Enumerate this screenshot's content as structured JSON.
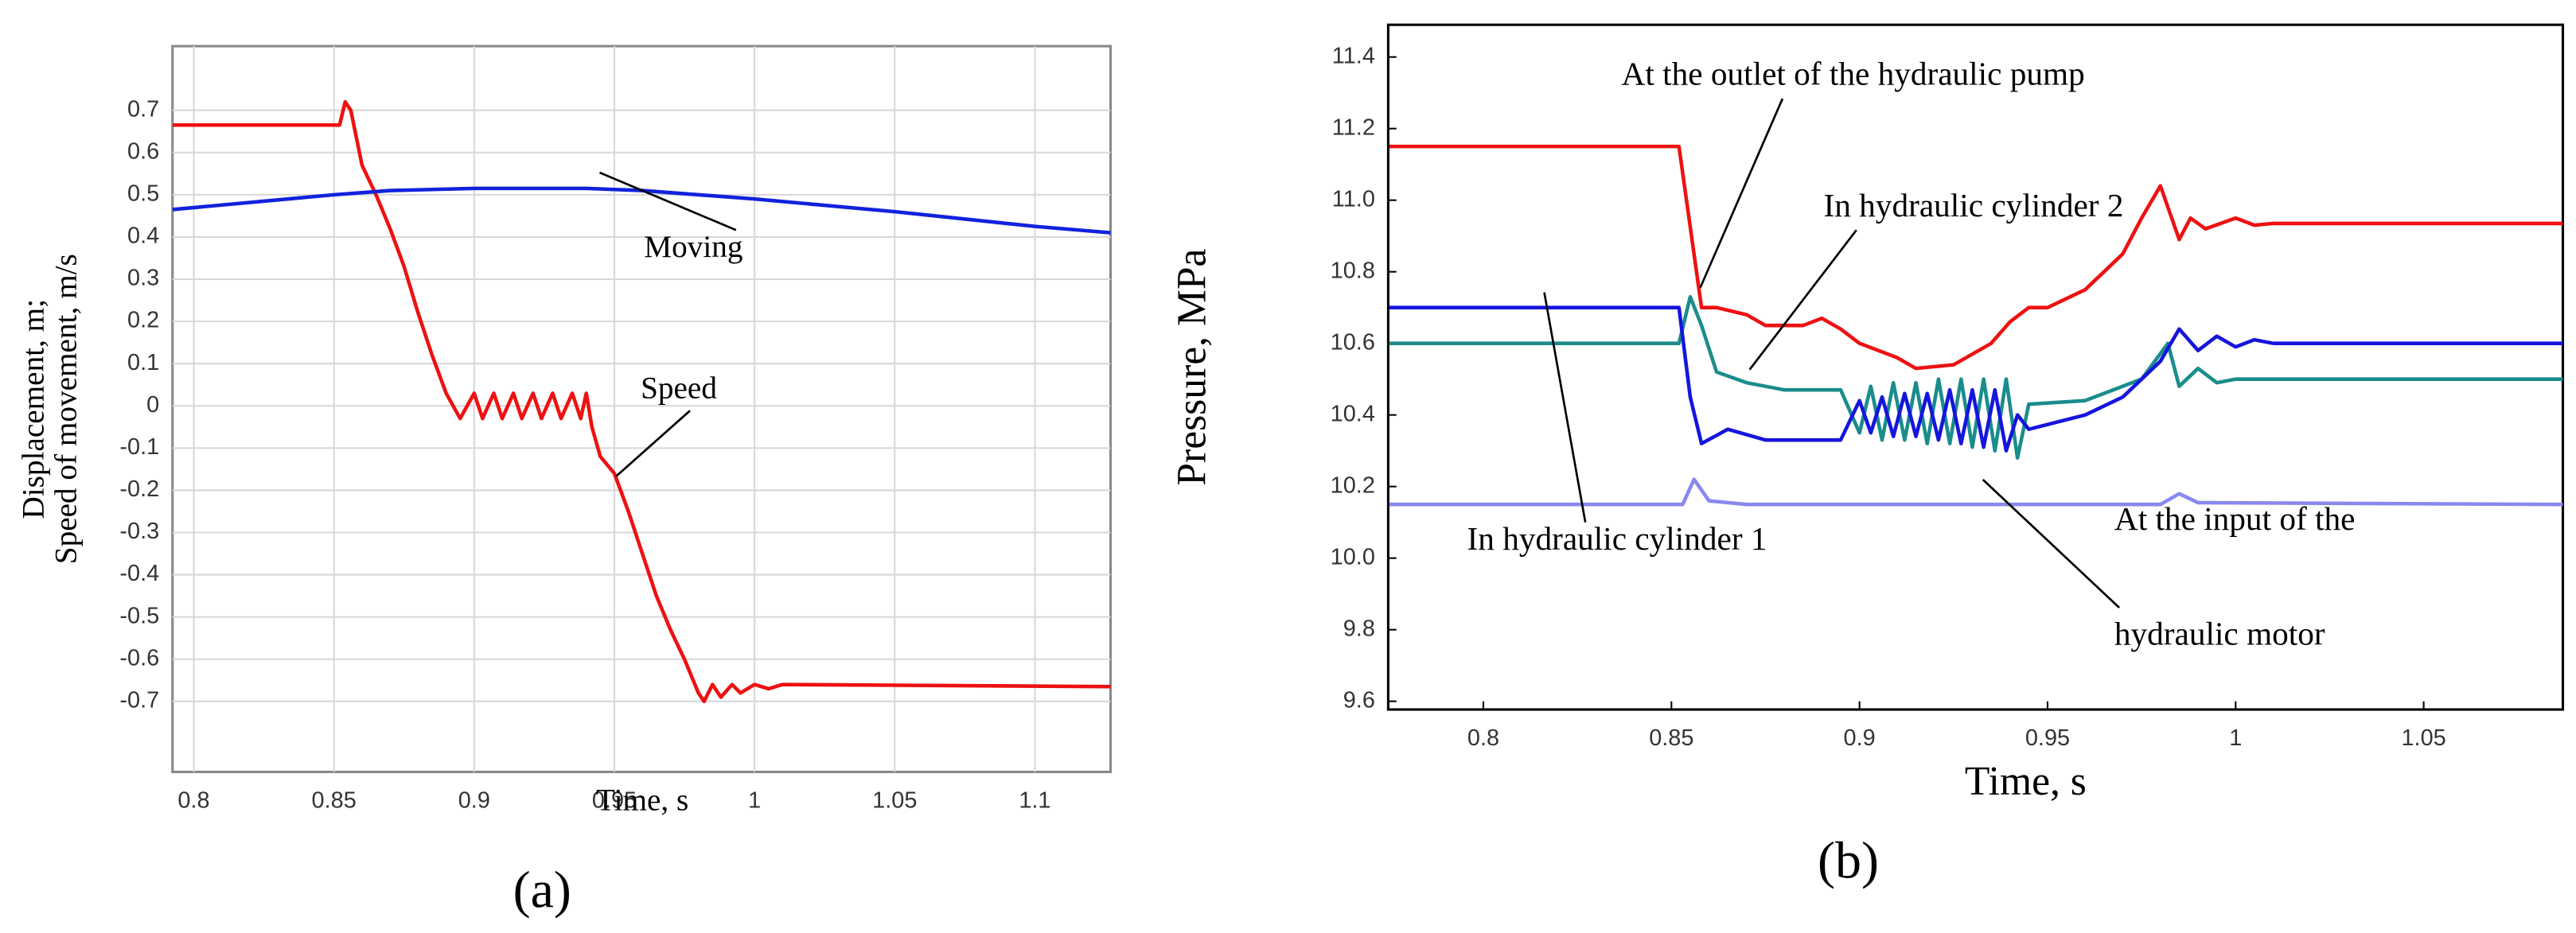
{
  "chart_data": [
    {
      "type": "line",
      "label": "(a)",
      "x_label": "Time, s",
      "y_label": [
        "Displacement, m;",
        "Speed of movement, m/s"
      ],
      "xlim": [
        0.7924,
        1.127
      ],
      "ylim": [
        -0.867,
        0.852
      ],
      "xticks": [
        0.8,
        0.85,
        0.9,
        0.95,
        1,
        1.05,
        1.1
      ],
      "yticks": [
        0.7,
        0.6,
        0.5,
        0.4,
        0.3,
        0.2,
        0.1,
        0,
        -0.1,
        -0.2,
        -0.3,
        -0.4,
        -0.5,
        -0.6,
        -0.7
      ],
      "grid": true,
      "annotations": [
        "Moving",
        "Speed"
      ],
      "series": [
        {
          "color": "#ee1111",
          "x": [
            0.7924,
            0.852,
            0.854,
            0.856,
            0.86,
            0.865,
            0.87,
            0.875,
            0.88,
            0.885,
            0.89,
            0.895,
            0.9,
            0.903,
            0.907,
            0.91,
            0.914,
            0.917,
            0.921,
            0.924,
            0.928,
            0.931,
            0.935,
            0.938,
            0.94,
            0.942,
            0.945,
            0.95,
            0.955,
            0.96,
            0.965,
            0.97,
            0.975,
            0.98,
            0.982,
            0.985,
            0.988,
            0.992,
            0.995,
            1.0,
            1.005,
            1.01,
            1.127
          ],
          "values": [
            0.665,
            0.665,
            0.72,
            0.7,
            0.57,
            0.5,
            0.42,
            0.33,
            0.22,
            0.12,
            0.03,
            -0.03,
            0.03,
            -0.03,
            0.03,
            -0.03,
            0.03,
            -0.03,
            0.03,
            -0.03,
            0.03,
            -0.03,
            0.03,
            -0.03,
            0.03,
            -0.05,
            -0.12,
            -0.16,
            -0.25,
            -0.35,
            -0.45,
            -0.53,
            -0.6,
            -0.68,
            -0.7,
            -0.66,
            -0.69,
            -0.66,
            -0.68,
            -0.66,
            -0.67,
            -0.66,
            -0.665
          ]
        },
        {
          "color": "#1122dd",
          "x": [
            0.7924,
            0.85,
            0.87,
            0.9,
            0.94,
            0.96,
            1.0,
            1.05,
            1.1,
            1.127
          ],
          "values": [
            0.465,
            0.5,
            0.51,
            0.515,
            0.515,
            0.51,
            0.49,
            0.46,
            0.425,
            0.41
          ]
        }
      ]
    },
    {
      "type": "line",
      "label": "(b)",
      "x_label": "Time, s",
      "y_label": [
        "Pressure, MPa"
      ],
      "xlim": [
        0.7747,
        1.087
      ],
      "ylim": [
        9.577,
        11.49
      ],
      "xticks": [
        0.8,
        0.85,
        0.9,
        0.95,
        1,
        1.05
      ],
      "yticks": [
        11.4,
        11.2,
        {
          "value": 11,
          "label": "11.0"
        },
        10.8,
        10.6,
        10.4,
        10.2,
        {
          "value": 10,
          "label": "10.0"
        },
        9.8,
        9.6
      ],
      "grid": false,
      "annotations": [
        "At the outlet of the hydraulic pump",
        "In hydraulic cylinder 2",
        "In hydraulic cylinder 1",
        "At the input of the",
        "hydraulic motor"
      ],
      "series": [
        {
          "color": "#ee1111",
          "x": [
            0.775,
            0.852,
            0.856,
            0.858,
            0.862,
            0.87,
            0.875,
            0.885,
            0.89,
            0.895,
            0.9,
            0.91,
            0.915,
            0.925,
            0.935,
            0.94,
            0.945,
            0.95,
            0.96,
            0.97,
            0.975,
            0.98,
            0.983,
            0.985,
            0.988,
            0.992,
            1.0,
            1.005,
            1.01,
            1.087
          ],
          "values": [
            11.15,
            11.15,
            10.85,
            10.7,
            10.7,
            10.68,
            10.65,
            10.65,
            10.67,
            10.64,
            10.6,
            10.56,
            10.53,
            10.54,
            10.6,
            10.66,
            10.7,
            10.7,
            10.75,
            10.85,
            10.95,
            11.04,
            10.95,
            10.89,
            10.95,
            10.92,
            10.95,
            10.93,
            10.935,
            10.935
          ]
        },
        {
          "color": "#1a8c8c",
          "x": [
            0.775,
            0.852,
            0.855,
            0.858,
            0.862,
            0.87,
            0.88,
            0.895,
            0.9,
            0.903,
            0.906,
            0.909,
            0.912,
            0.915,
            0.918,
            0.921,
            0.924,
            0.927,
            0.93,
            0.933,
            0.936,
            0.939,
            0.942,
            0.945,
            0.96,
            0.975,
            0.982,
            0.985,
            0.99,
            0.995,
            1.0,
            1.087
          ],
          "values": [
            10.6,
            10.6,
            10.73,
            10.65,
            10.52,
            10.49,
            10.47,
            10.47,
            10.35,
            10.48,
            10.33,
            10.49,
            10.33,
            10.49,
            10.32,
            10.5,
            10.32,
            10.5,
            10.31,
            10.5,
            10.3,
            10.5,
            10.28,
            10.43,
            10.44,
            10.5,
            10.6,
            10.48,
            10.53,
            10.49,
            10.5,
            10.5
          ]
        },
        {
          "color": "#1515dd",
          "x": [
            0.775,
            0.852,
            0.855,
            0.858,
            0.865,
            0.875,
            0.895,
            0.9,
            0.903,
            0.906,
            0.909,
            0.912,
            0.915,
            0.918,
            0.921,
            0.924,
            0.927,
            0.93,
            0.933,
            0.936,
            0.939,
            0.942,
            0.945,
            0.96,
            0.97,
            0.98,
            0.985,
            0.99,
            0.995,
            1.0,
            1.005,
            1.01,
            1.087
          ],
          "values": [
            10.7,
            10.7,
            10.45,
            10.32,
            10.36,
            10.33,
            10.33,
            10.44,
            10.35,
            10.45,
            10.34,
            10.46,
            10.34,
            10.46,
            10.33,
            10.47,
            10.32,
            10.47,
            10.31,
            10.47,
            10.3,
            10.4,
            10.36,
            10.4,
            10.45,
            10.55,
            10.64,
            10.58,
            10.62,
            10.59,
            10.61,
            10.6,
            10.6
          ]
        },
        {
          "color": "#8888ee",
          "x": [
            0.775,
            0.853,
            0.856,
            0.86,
            0.87,
            0.98,
            0.985,
            0.99,
            1.087
          ],
          "values": [
            10.15,
            10.15,
            10.22,
            10.16,
            10.15,
            10.15,
            10.18,
            10.155,
            10.15
          ]
        }
      ]
    }
  ]
}
